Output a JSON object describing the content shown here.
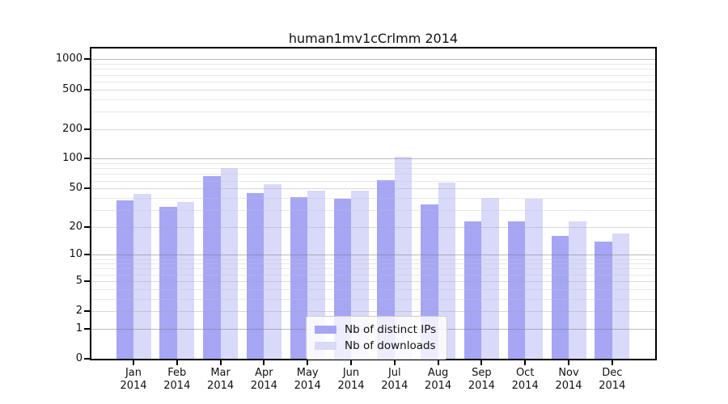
{
  "chart_data": {
    "type": "bar",
    "title": "human1mv1cCrlmm 2014",
    "categories": [
      "Jan 2014",
      "Feb 2014",
      "Mar 2014",
      "Apr 2014",
      "May 2014",
      "Jun 2014",
      "Jul 2014",
      "Aug 2014",
      "Sep 2014",
      "Oct 2014",
      "Nov 2014",
      "Dec 2014"
    ],
    "series": [
      {
        "name": "Nb of distinct IPs",
        "color": "#a6a6f5",
        "values": [
          38,
          32,
          66,
          45,
          41,
          39,
          61,
          34,
          23,
          23,
          16,
          14
        ]
      },
      {
        "name": "Nb of downloads",
        "color": "#d9d9fa",
        "values": [
          44,
          36,
          80,
          55,
          47,
          47,
          105,
          57,
          40,
          39,
          23,
          17
        ]
      }
    ],
    "y_ticks": [
      0,
      1,
      2,
      5,
      10,
      20,
      50,
      100,
      200,
      500,
      1000
    ],
    "y_scale": "log10(1+y)",
    "ylim": [
      0,
      1300
    ],
    "grid": "horizontal, log minor + major, drawn over bars",
    "legend_position": "inside bottom-center",
    "xlabel": "",
    "ylabel": ""
  }
}
